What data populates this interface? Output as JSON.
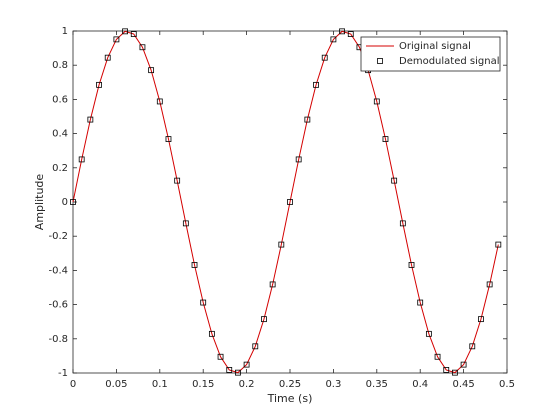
{
  "chart_data": {
    "type": "line",
    "xlabel": "Time (s)",
    "ylabel": "Amplitude",
    "x": [
      0,
      0.01,
      0.02,
      0.03,
      0.04,
      0.05,
      0.06,
      0.07,
      0.08,
      0.09,
      0.1,
      0.11,
      0.12,
      0.13,
      0.14,
      0.15,
      0.16,
      0.17,
      0.18,
      0.19,
      0.2,
      0.21,
      0.22,
      0.23,
      0.24,
      0.25,
      0.26,
      0.27,
      0.28,
      0.29,
      0.3,
      0.31,
      0.32,
      0.33,
      0.34,
      0.35,
      0.36,
      0.37,
      0.38,
      0.39,
      0.4,
      0.41,
      0.42,
      0.43,
      0.44,
      0.45,
      0.46,
      0.47,
      0.48,
      0.49
    ],
    "series": [
      {
        "name": "Original signal",
        "color": "#d40000",
        "style": "line",
        "values": [
          0,
          0.249,
          0.482,
          0.685,
          0.844,
          0.951,
          0.998,
          0.982,
          0.905,
          0.771,
          0.588,
          0.368,
          0.125,
          -0.125,
          -0.368,
          -0.588,
          -0.771,
          -0.905,
          -0.982,
          -0.998,
          -0.951,
          -0.844,
          -0.685,
          -0.482,
          -0.249,
          0,
          0.249,
          0.482,
          0.685,
          0.844,
          0.951,
          0.998,
          0.982,
          0.905,
          0.771,
          0.588,
          0.368,
          0.125,
          -0.125,
          -0.368,
          -0.588,
          -0.771,
          -0.905,
          -0.982,
          -0.998,
          -0.951,
          -0.844,
          -0.685,
          -0.482,
          -0.249
        ]
      },
      {
        "name": "Demodulated signal",
        "color": "#000000",
        "style": "marker",
        "values": [
          0,
          0.249,
          0.482,
          0.685,
          0.844,
          0.951,
          0.998,
          0.982,
          0.905,
          0.771,
          0.588,
          0.368,
          0.125,
          -0.125,
          -0.368,
          -0.588,
          -0.771,
          -0.905,
          -0.982,
          -0.998,
          -0.951,
          -0.844,
          -0.685,
          -0.482,
          -0.249,
          0,
          0.249,
          0.482,
          0.685,
          0.844,
          0.951,
          0.998,
          0.982,
          0.905,
          0.771,
          0.588,
          0.368,
          0.125,
          -0.125,
          -0.368,
          -0.588,
          -0.771,
          -0.905,
          -0.982,
          -0.998,
          -0.951,
          -0.844,
          -0.685,
          -0.482,
          -0.249
        ]
      }
    ],
    "xlim": [
      0,
      0.5
    ],
    "xticks": [
      0,
      0.05,
      0.1,
      0.15,
      0.2,
      0.25,
      0.3,
      0.35,
      0.4,
      0.45,
      0.5
    ],
    "ylim": [
      -1,
      1
    ],
    "yticks": [
      -1,
      -0.8,
      -0.6,
      -0.4,
      -0.2,
      0,
      0.2,
      0.4,
      0.6,
      0.8,
      1
    ],
    "grid": false,
    "legend": "top-right"
  }
}
